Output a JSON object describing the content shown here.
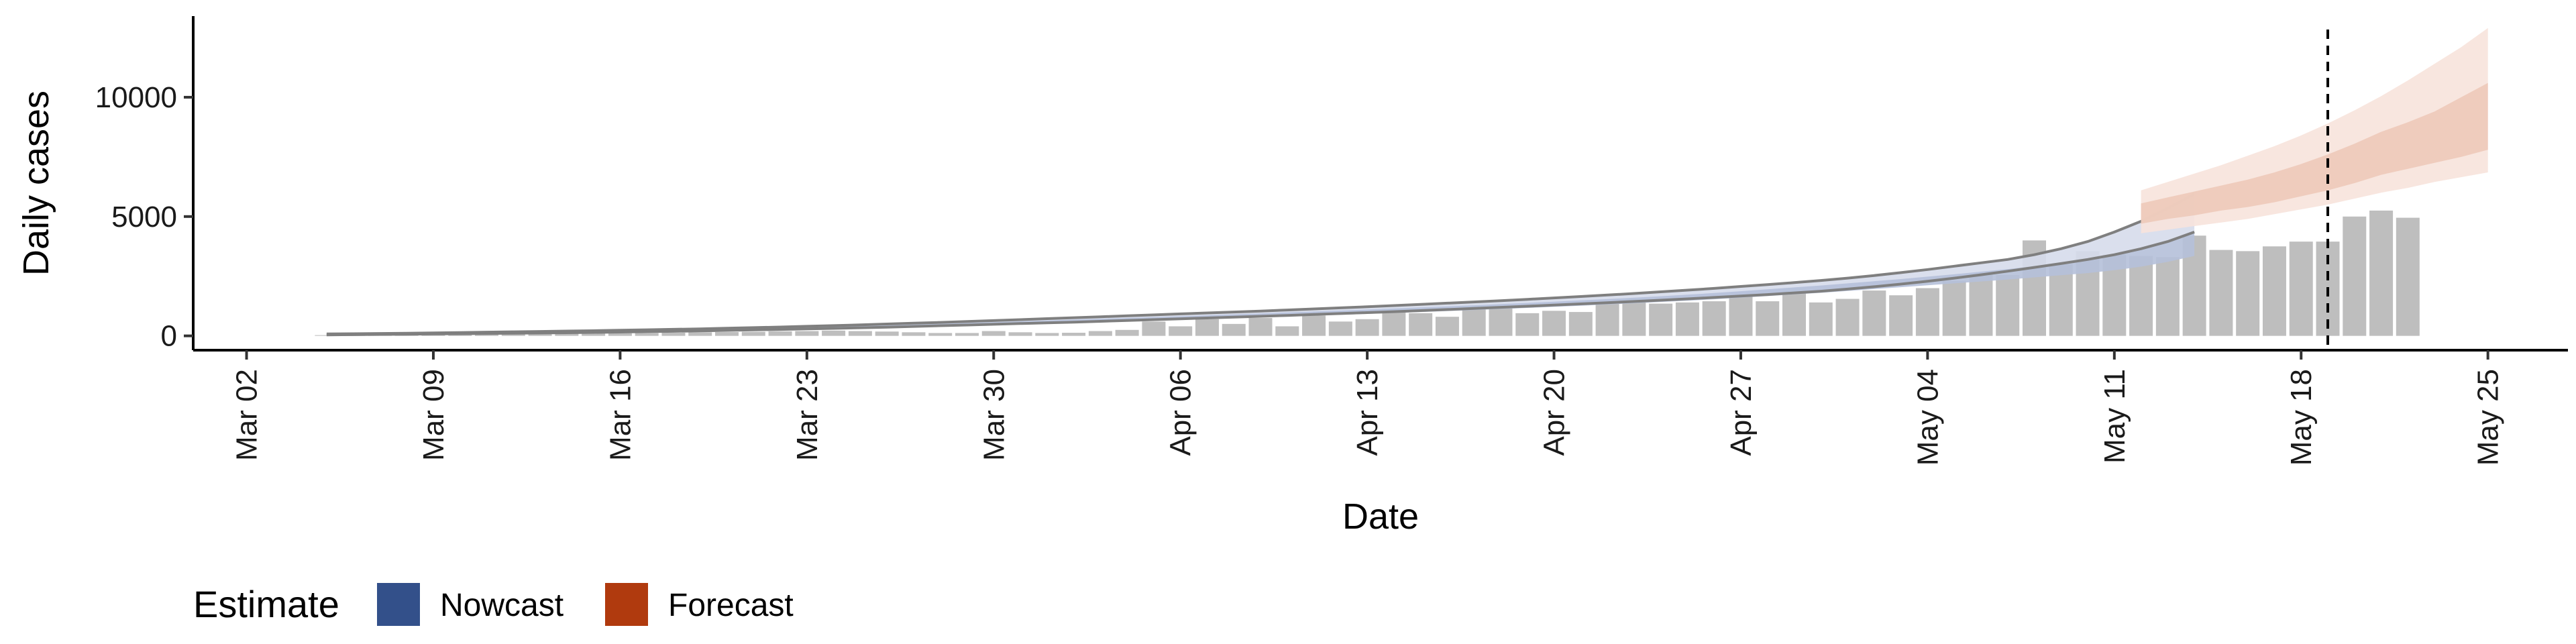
{
  "chart_data": {
    "type": "bar",
    "xlabel": "Date",
    "ylabel": "Daily cases",
    "x_ticks": [
      "Mar 02",
      "Mar 09",
      "Mar 16",
      "Mar 23",
      "Mar 30",
      "Apr 06",
      "Apr 13",
      "Apr 20",
      "Apr 27",
      "May 04",
      "May 11",
      "May 18",
      "May 25"
    ],
    "y_ticks": [
      "0",
      "5000",
      "10000"
    ],
    "xlim": [
      "2020-02-29",
      "2020-05-28"
    ],
    "ylim": [
      -600,
      13400
    ],
    "reference_line": {
      "date": "2020-05-19",
      "style": "dashed"
    },
    "reported_cases": {
      "start": "2020-03-05",
      "values": [
        30,
        30,
        40,
        50,
        50,
        60,
        60,
        70,
        80,
        90,
        100,
        110,
        120,
        130,
        150,
        160,
        170,
        190,
        200,
        220,
        200,
        180,
        150,
        120,
        120,
        200,
        150,
        120,
        130,
        200,
        250,
        600,
        400,
        700,
        500,
        750,
        400,
        850,
        600,
        700,
        1150,
        950,
        800,
        1250,
        1150,
        950,
        1050,
        1000,
        1350,
        1550,
        1350,
        1400,
        1450,
        1700,
        1450,
        2000,
        1400,
        1550,
        1900,
        1700,
        2000,
        2300,
        2600,
        2550,
        4000,
        3000,
        3550,
        3400,
        3350,
        3300,
        4200,
        3600,
        3550,
        3750,
        3950,
        3950,
        5000,
        5250,
        4950
      ]
    },
    "nowcast": {
      "start": "2020-03-05",
      "median": [
        50,
        60,
        70,
        80,
        90,
        100,
        110,
        120,
        130,
        145,
        160,
        175,
        190,
        205,
        225,
        245,
        265,
        290,
        315,
        340,
        365,
        395,
        425,
        460,
        490,
        520,
        555,
        590,
        620,
        650,
        680,
        715,
        750,
        785,
        820,
        855,
        890,
        925,
        960,
        1000,
        1040,
        1080,
        1120,
        1165,
        1210,
        1255,
        1300,
        1350,
        1400,
        1455,
        1510,
        1565,
        1625,
        1690,
        1760,
        1830,
        1900,
        1980,
        2060,
        2140,
        2230,
        2320,
        2410,
        2500,
        2600,
        2700,
        2800,
        2950,
        3150,
        3400,
        3750
      ],
      "lower_90": [
        30,
        40,
        50,
        60,
        70,
        80,
        90,
        100,
        110,
        120,
        135,
        150,
        165,
        180,
        195,
        215,
        235,
        255,
        275,
        300,
        325,
        350,
        380,
        410,
        440,
        470,
        500,
        530,
        560,
        590,
        620,
        650,
        680,
        710,
        745,
        780,
        815,
        850,
        885,
        920,
        960,
        1000,
        1040,
        1080,
        1125,
        1170,
        1215,
        1265,
        1315,
        1365,
        1420,
        1475,
        1535,
        1600,
        1665,
        1735,
        1805,
        1880,
        1960,
        2040,
        2120,
        2200,
        2280,
        2360,
        2450,
        2540,
        2630,
        2750,
        2900,
        3100,
        3350
      ],
      "upper_90": [
        70,
        80,
        90,
        100,
        110,
        120,
        135,
        150,
        165,
        180,
        195,
        210,
        225,
        240,
        260,
        280,
        300,
        325,
        350,
        380,
        410,
        440,
        470,
        505,
        540,
        575,
        610,
        645,
        680,
        715,
        750,
        785,
        820,
        860,
        900,
        940,
        980,
        1020,
        1060,
        1100,
        1145,
        1190,
        1235,
        1280,
        1330,
        1380,
        1430,
        1485,
        1540,
        1600,
        1660,
        1725,
        1795,
        1870,
        1950,
        2030,
        2110,
        2200,
        2290,
        2380,
        2480,
        2580,
        2690,
        2800,
        2920,
        3050,
        3200,
        3400,
        3650,
        3950,
        4350
      ],
      "outline_upper": [
        80,
        90,
        100,
        110,
        125,
        140,
        155,
        170,
        185,
        200,
        215,
        235,
        255,
        275,
        295,
        320,
        345,
        370,
        400,
        430,
        460,
        495,
        530,
        565,
        600,
        640,
        680,
        720,
        760,
        800,
        840,
        880,
        920,
        960,
        1000,
        1040,
        1085,
        1130,
        1175,
        1220,
        1270,
        1320,
        1370,
        1420,
        1475,
        1530,
        1590,
        1650,
        1710,
        1775,
        1845,
        1915,
        1990,
        2070,
        2150,
        2230,
        2320,
        2420,
        2530,
        2650,
        2780,
        2920,
        3060,
        3200,
        3400,
        3650,
        3950,
        4350,
        4800,
        5350,
        5950
      ],
      "outline_lower": [
        40,
        50,
        60,
        70,
        80,
        90,
        100,
        110,
        120,
        130,
        145,
        160,
        175,
        190,
        210,
        230,
        250,
        270,
        290,
        315,
        340,
        365,
        395,
        425,
        455,
        485,
        515,
        545,
        575,
        610,
        645,
        680,
        715,
        750,
        785,
        820,
        855,
        895,
        935,
        975,
        1015,
        1060,
        1105,
        1150,
        1195,
        1240,
        1290,
        1340,
        1390,
        1440,
        1495,
        1550,
        1610,
        1670,
        1730,
        1800,
        1870,
        1960,
        2060,
        2170,
        2290,
        2420,
        2560,
        2710,
        2870,
        3030,
        3200,
        3400,
        3650,
        3950,
        4350
      ]
    },
    "forecast": {
      "start": "2020-05-12",
      "median": [
        5100,
        5300,
        5500,
        5700,
        5900,
        6150,
        6400,
        6700,
        7050,
        7500,
        7750,
        8000,
        8300,
        8700
      ],
      "lower_50": [
        4700,
        4900,
        5050,
        5250,
        5400,
        5600,
        5850,
        6100,
        6400,
        6750,
        7000,
        7250,
        7500,
        7800
      ],
      "upper_50": [
        5550,
        5800,
        6050,
        6300,
        6550,
        6850,
        7200,
        7600,
        8050,
        8550,
        8950,
        9400,
        10000,
        10600
      ],
      "lower_90": [
        4300,
        4450,
        4600,
        4750,
        4900,
        5100,
        5300,
        5500,
        5750,
        6000,
        6200,
        6450,
        6650,
        6850
      ],
      "upper_90": [
        6100,
        6450,
        6800,
        7150,
        7550,
        7950,
        8400,
        8900,
        9450,
        10050,
        10700,
        11400,
        12100,
        12900
      ]
    },
    "legend": {
      "title": "Estimate",
      "position": "bottom-left",
      "items": [
        {
          "label": "Nowcast",
          "color": "#33508A"
        },
        {
          "label": "Forecast",
          "color": "#B03A0E"
        }
      ]
    },
    "colors": {
      "bars": "#BEBEBE",
      "nowcast_band_outer": "#D6DCEB",
      "nowcast_band_inner": "#B5C0D9",
      "nowcast_outline": "#7F7F7F",
      "forecast_band_outer": "#F7E3DB",
      "forecast_band_inner": "#EDC9B9",
      "reference_line": "#000000"
    }
  }
}
